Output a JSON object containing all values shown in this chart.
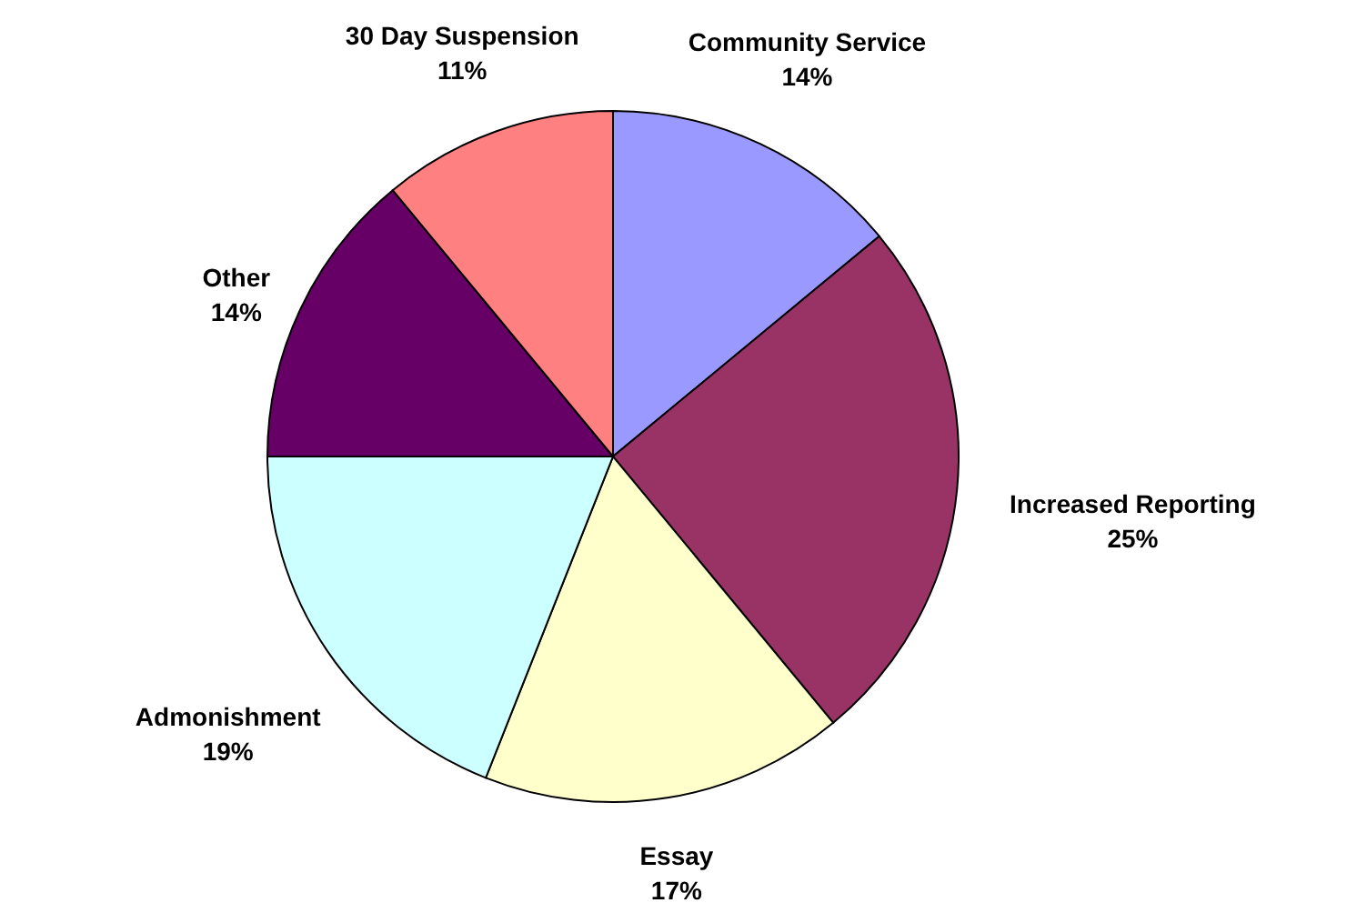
{
  "chart_data": {
    "type": "pie",
    "categories": [
      "Community Service",
      "Increased Reporting",
      "Essay",
      "Admonishment",
      "Other",
      "30 Day Suspension"
    ],
    "values": [
      14,
      25,
      17,
      19,
      14,
      11
    ],
    "colors": [
      "#9999ff",
      "#993366",
      "#ffffcc",
      "#ccffff",
      "#660066",
      "#ff8080"
    ],
    "value_labels": [
      "14%",
      "25%",
      "17%",
      "19%",
      "14%",
      "11%"
    ]
  }
}
